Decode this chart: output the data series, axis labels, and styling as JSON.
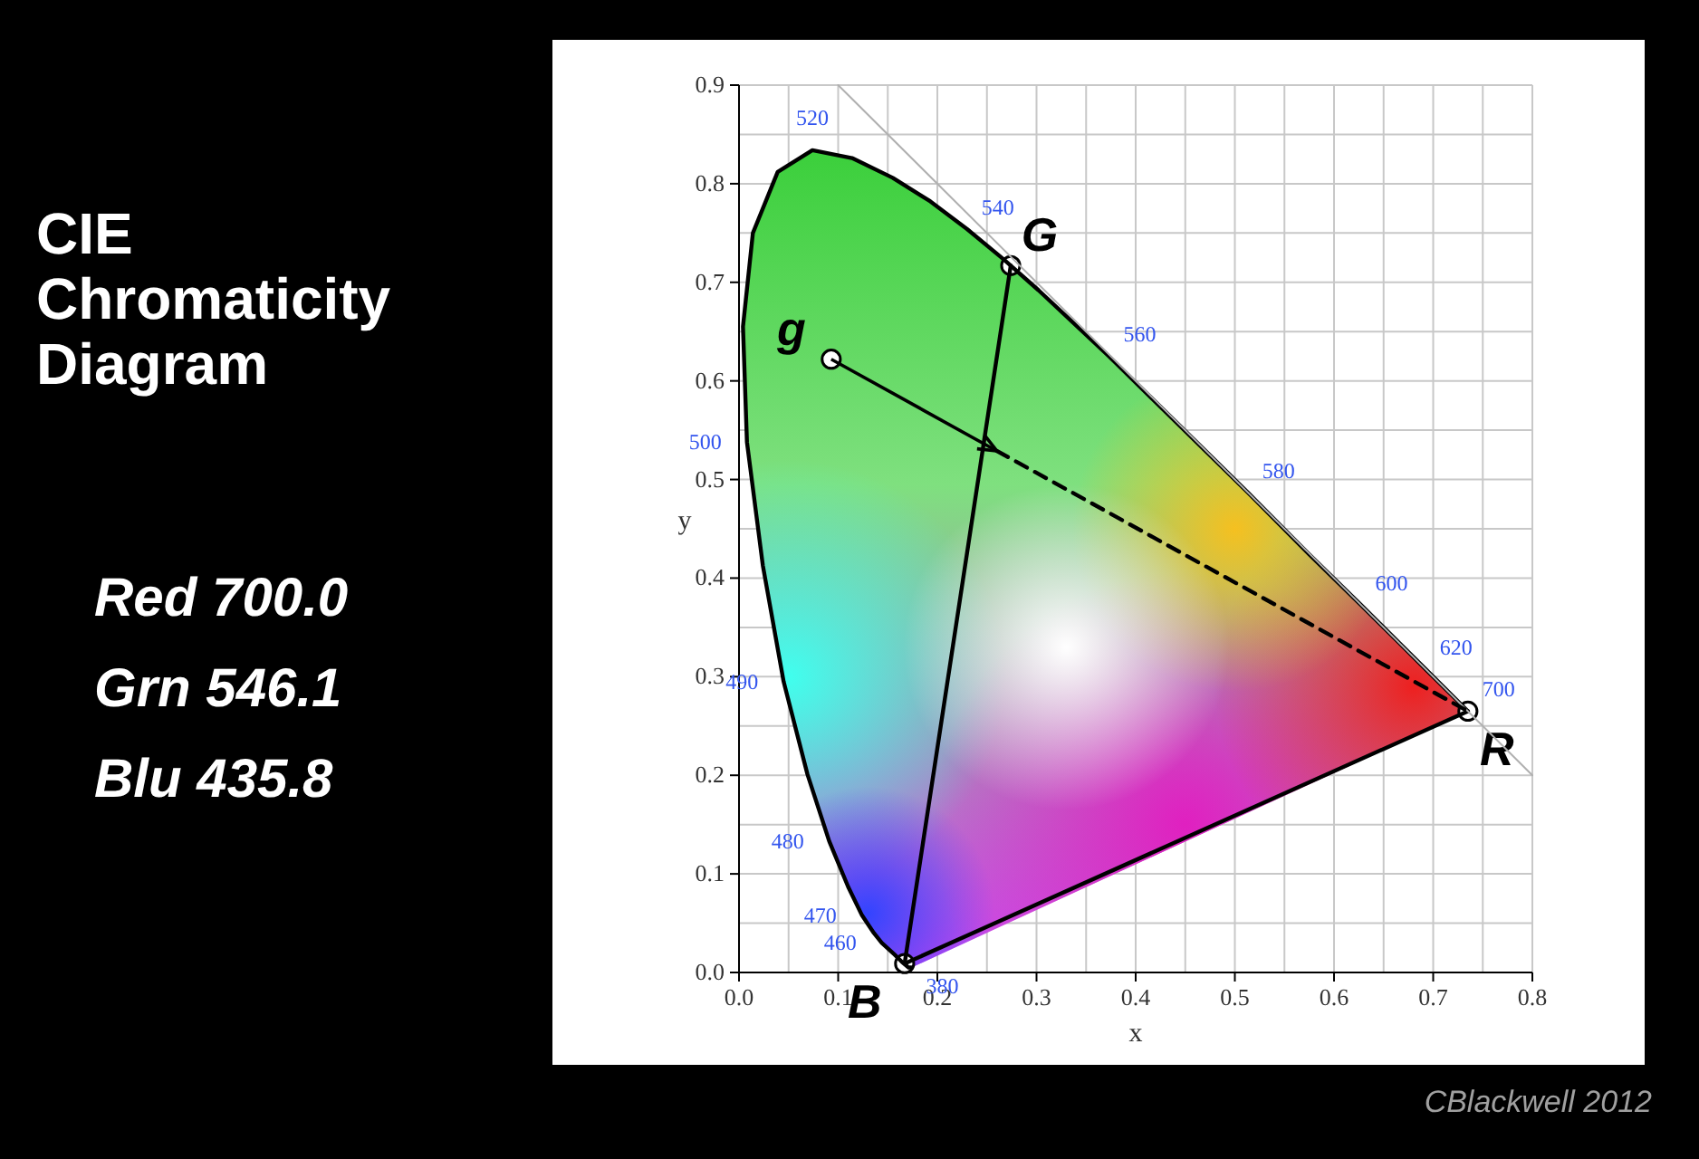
{
  "chart_data": {
    "type": "line",
    "title": "CIE Chromaticity Diagram",
    "xlabel": "x",
    "ylabel": "y",
    "xlim": [
      0,
      0.8
    ],
    "ylim": [
      0,
      0.9
    ],
    "xticks": [
      {
        "value": 0,
        "label": "0.0"
      },
      0.1,
      0.2,
      0.3,
      0.4,
      0.5,
      0.6,
      0.7,
      0.8
    ],
    "yticks": [
      {
        "value": 0,
        "label": "0.0"
      },
      0.1,
      0.2,
      0.3,
      0.4,
      0.5,
      0.6,
      0.7,
      0.8,
      0.9
    ],
    "grid": true,
    "line_style": "solid",
    "series": [
      {
        "color": "#000000",
        "x": [
          0.174,
          0.171,
          0.164,
          0.157,
          0.144,
          0.136,
          0.124,
          0.11,
          0.091,
          0.069,
          0.045,
          0.024,
          0.008,
          0.004,
          0.014,
          0.039,
          0.074,
          0.114,
          0.155,
          0.193,
          0.23,
          0.266,
          0.302,
          0.337,
          0.373,
          0.444,
          0.513,
          0.575,
          0.627,
          0.666,
          0.692,
          0.719,
          0.73,
          0.735
        ],
        "values": [
          0.005,
          0.005,
          0.011,
          0.018,
          0.03,
          0.04,
          0.058,
          0.087,
          0.133,
          0.201,
          0.295,
          0.413,
          0.538,
          0.655,
          0.75,
          0.812,
          0.834,
          0.826,
          0.806,
          0.782,
          0.754,
          0.724,
          0.692,
          0.659,
          0.625,
          0.555,
          0.487,
          0.424,
          0.373,
          0.334,
          0.308,
          0.281,
          0.27,
          0.265
        ]
      },
      {
        "color": "#000000",
        "x": [
          0.167,
          0.274
        ],
        "values": [
          0.009,
          0.717
        ]
      },
      {
        "color": "#000000",
        "x": [
          0.167,
          0.735
        ],
        "values": [
          0.009,
          0.265
        ]
      },
      {
        "color": "#b0b0b0",
        "x": [
          0.1,
          0.8
        ],
        "values": [
          0.9,
          0.2
        ]
      },
      {
        "color": "#000000",
        "line_style": "dashed",
        "x": [
          0.26,
          0.735
        ],
        "values": [
          0.529,
          0.265
        ]
      },
      {
        "type": "scatter",
        "marker": "circle",
        "name": "G",
        "color": "#ffffff",
        "x": [
          0.274
        ],
        "values": [
          0.717
        ]
      },
      {
        "type": "scatter",
        "marker": "circle",
        "name": "B",
        "color": "#ffffff",
        "x": [
          0.167
        ],
        "values": [
          0.009
        ]
      },
      {
        "type": "scatter",
        "marker": "circle",
        "name": "R",
        "color": "#ffffff",
        "x": [
          0.735
        ],
        "values": [
          0.265
        ]
      },
      {
        "type": "scatter",
        "marker": "circle",
        "name": "g",
        "color": "#ffffff",
        "x": [
          0.093
        ],
        "values": [
          0.622
        ]
      }
    ],
    "annotations": [
      "Red 700.0",
      "Grn 546.1",
      "Blu 435.8",
      "CBlackwell 2012",
      {
        "text": "380",
        "x": 0.174,
        "y": 0.005
      },
      {
        "text": "460",
        "x": 0.144,
        "y": 0.03
      },
      {
        "text": "470",
        "x": 0.124,
        "y": 0.058
      },
      {
        "text": "480",
        "x": 0.091,
        "y": 0.133
      },
      {
        "text": "490",
        "x": 0.045,
        "y": 0.295
      },
      {
        "text": "500",
        "x": 0.008,
        "y": 0.538
      },
      {
        "text": "520",
        "x": 0.074,
        "y": 0.834
      },
      {
        "text": "540",
        "x": 0.23,
        "y": 0.754
      },
      {
        "text": "560",
        "x": 0.373,
        "y": 0.625
      },
      {
        "text": "580",
        "x": 0.513,
        "y": 0.487
      },
      {
        "text": "600",
        "x": 0.627,
        "y": 0.373
      },
      {
        "text": "620",
        "x": 0.692,
        "y": 0.308
      },
      {
        "text": "700",
        "x": 0.735,
        "y": 0.265
      }
    ]
  }
}
